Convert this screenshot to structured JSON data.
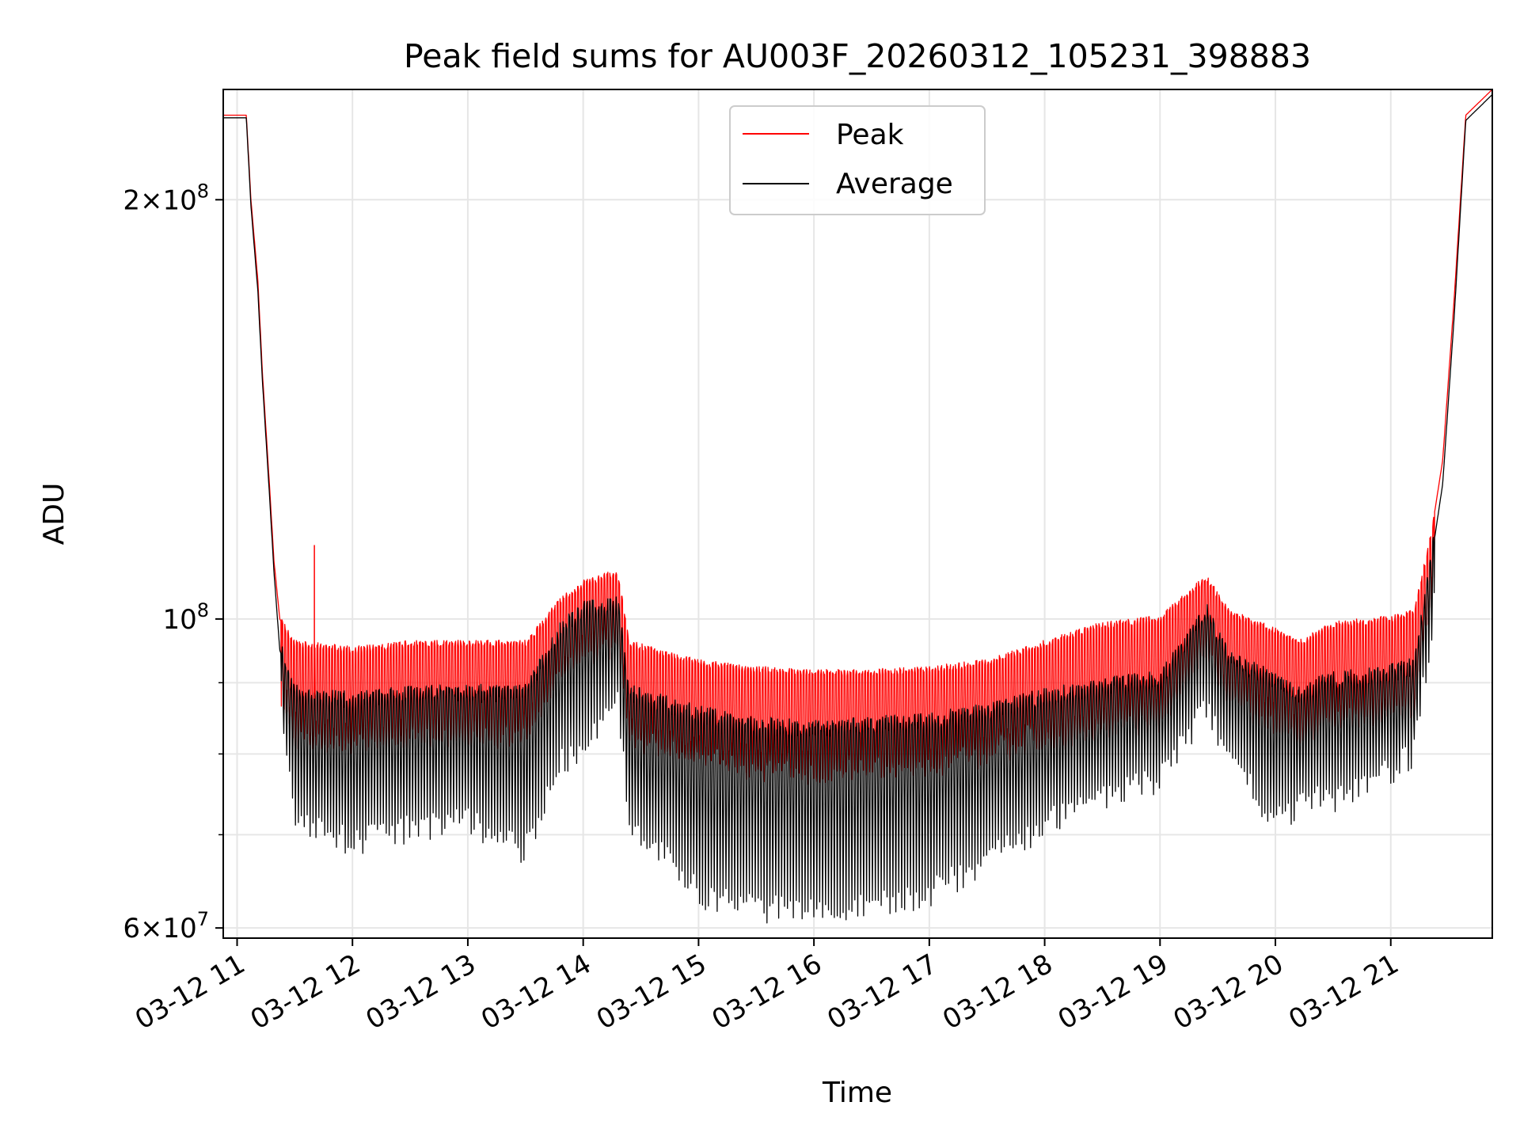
{
  "chart_data": {
    "type": "line",
    "title": "Peak field sums for AU003F_20260312_105231_398883",
    "xlabel": "Time",
    "ylabel": "ADU",
    "yscale": "log",
    "ylim": [
      59000000,
      240000000
    ],
    "xlim_hours": [
      10.88,
      21.88
    ],
    "grid": true,
    "legend_position": "upper-center",
    "x_ticks": [
      {
        "hour": 11,
        "label": "03-12 11"
      },
      {
        "hour": 12,
        "label": "03-12 12"
      },
      {
        "hour": 13,
        "label": "03-12 13"
      },
      {
        "hour": 14,
        "label": "03-12 14"
      },
      {
        "hour": 15,
        "label": "03-12 15"
      },
      {
        "hour": 16,
        "label": "03-12 16"
      },
      {
        "hour": 17,
        "label": "03-12 17"
      },
      {
        "hour": 18,
        "label": "03-12 18"
      },
      {
        "hour": 19,
        "label": "03-12 19"
      },
      {
        "hour": 20,
        "label": "03-12 20"
      },
      {
        "hour": 21,
        "label": "03-12 21"
      }
    ],
    "y_major_ticks": [
      {
        "value": 60000000,
        "mantissa": "6",
        "base": "10",
        "exp": "7"
      },
      {
        "value": 100000000,
        "mantissa": "",
        "base": "10",
        "exp": "8"
      },
      {
        "value": 200000000,
        "mantissa": "2",
        "base": "10",
        "exp": "8"
      }
    ],
    "y_minor_ticks": [
      70000000,
      80000000,
      90000000
    ],
    "series": [
      {
        "name": "Peak",
        "color": "#ff0000",
        "points": [
          [
            10.88,
            230000000
          ],
          [
            11.08,
            230000000
          ],
          [
            11.12,
            200000000
          ],
          [
            11.18,
            175000000
          ],
          [
            11.22,
            150000000
          ],
          [
            11.28,
            125000000
          ],
          [
            11.32,
            110000000
          ],
          [
            11.37,
            100000000
          ],
          [
            11.5,
            96000000
          ],
          [
            12.0,
            95000000
          ],
          [
            12.5,
            96000000
          ],
          [
            13.0,
            96000000
          ],
          [
            13.5,
            96000000
          ],
          [
            13.8,
            103000000
          ],
          [
            14.0,
            106000000
          ],
          [
            14.3,
            108000000
          ],
          [
            14.4,
            96000000
          ],
          [
            15.0,
            93000000
          ],
          [
            15.5,
            92000000
          ],
          [
            16.0,
            91500000
          ],
          [
            16.5,
            91500000
          ],
          [
            17.0,
            92000000
          ],
          [
            17.5,
            93000000
          ],
          [
            18.0,
            96000000
          ],
          [
            18.5,
            99000000
          ],
          [
            19.0,
            100000000
          ],
          [
            19.4,
            107000000
          ],
          [
            19.6,
            101000000
          ],
          [
            20.0,
            98000000
          ],
          [
            20.2,
            96000000
          ],
          [
            20.5,
            99000000
          ],
          [
            21.0,
            100000000
          ],
          [
            21.2,
            101000000
          ],
          [
            21.35,
            115000000
          ],
          [
            21.45,
            130000000
          ],
          [
            21.55,
            170000000
          ],
          [
            21.65,
            230000000
          ],
          [
            21.88,
            240000000
          ]
        ]
      },
      {
        "name": "Average",
        "color": "#000000",
        "points": [
          [
            10.88,
            229000000
          ],
          [
            11.08,
            229000000
          ],
          [
            11.12,
            198000000
          ],
          [
            11.18,
            172000000
          ],
          [
            11.22,
            148000000
          ],
          [
            11.28,
            123000000
          ],
          [
            11.32,
            108000000
          ],
          [
            11.37,
            95000000
          ],
          [
            11.5,
            88000000
          ],
          [
            12.0,
            87000000
          ],
          [
            12.5,
            88000000
          ],
          [
            13.0,
            88000000
          ],
          [
            13.5,
            88000000
          ],
          [
            13.8,
            98000000
          ],
          [
            14.0,
            101000000
          ],
          [
            14.3,
            102000000
          ],
          [
            14.4,
            88000000
          ],
          [
            15.0,
            85000000
          ],
          [
            15.5,
            83500000
          ],
          [
            16.0,
            83000000
          ],
          [
            16.5,
            83500000
          ],
          [
            17.0,
            84000000
          ],
          [
            17.5,
            85500000
          ],
          [
            18.0,
            87500000
          ],
          [
            18.5,
            89000000
          ],
          [
            19.0,
            90000000
          ],
          [
            19.4,
            101000000
          ],
          [
            19.6,
            93000000
          ],
          [
            20.0,
            90000000
          ],
          [
            20.2,
            88000000
          ],
          [
            20.5,
            90000000
          ],
          [
            21.0,
            91000000
          ],
          [
            21.2,
            92000000
          ],
          [
            21.35,
            110000000
          ],
          [
            21.45,
            125000000
          ],
          [
            21.55,
            165000000
          ],
          [
            21.65,
            228000000
          ],
          [
            21.88,
            238000000
          ]
        ],
        "dip_envelope": [
          [
            11.4,
            80000000
          ],
          [
            11.5,
            70000000
          ],
          [
            12.0,
            67500000
          ],
          [
            12.5,
            69000000
          ],
          [
            13.0,
            70000000
          ],
          [
            13.5,
            66500000
          ],
          [
            13.8,
            77000000
          ],
          [
            14.0,
            79000000
          ],
          [
            14.3,
            86000000
          ],
          [
            14.4,
            70000000
          ],
          [
            15.0,
            62000000
          ],
          [
            15.5,
            60500000
          ],
          [
            16.0,
            60000000
          ],
          [
            16.5,
            61000000
          ],
          [
            17.0,
            62000000
          ],
          [
            17.5,
            65500000
          ],
          [
            18.0,
            69500000
          ],
          [
            18.5,
            73000000
          ],
          [
            19.0,
            75000000
          ],
          [
            19.4,
            84000000
          ],
          [
            19.6,
            78000000
          ],
          [
            20.0,
            69500000
          ],
          [
            20.2,
            72000000
          ],
          [
            20.5,
            72500000
          ],
          [
            21.0,
            76000000
          ],
          [
            21.2,
            78000000
          ],
          [
            21.35,
            95000000
          ]
        ]
      }
    ],
    "annotations": [
      {
        "type": "spike",
        "series": "Peak",
        "hour": 11.67,
        "value": 113000000
      }
    ]
  }
}
